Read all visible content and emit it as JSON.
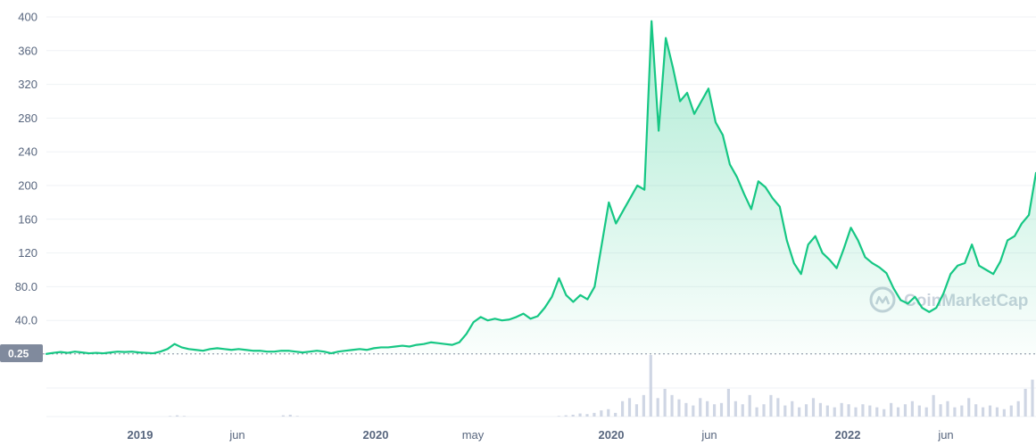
{
  "chart_data": {
    "type": "area",
    "title": "",
    "xlabel": "",
    "ylabel": "",
    "ylim": [
      0,
      400
    ],
    "y_ticks": [
      "40.0",
      "80.0",
      "120",
      "160",
      "200",
      "240",
      "280",
      "320",
      "360",
      "400"
    ],
    "y_tick_values": [
      40,
      80,
      120,
      160,
      200,
      240,
      280,
      320,
      360,
      400
    ],
    "x_ticks": [
      {
        "label": "2019",
        "major": true
      },
      {
        "label": "jun",
        "major": false
      },
      {
        "label": "2020",
        "major": true
      },
      {
        "label": "may",
        "major": false
      },
      {
        "label": "2020",
        "major": true
      },
      {
        "label": "jun",
        "major": false
      },
      {
        "label": "2022",
        "major": true
      },
      {
        "label": "jun",
        "major": false
      }
    ],
    "baseline_label": "0.25",
    "baseline_value": 0.25,
    "grid": true,
    "series": [
      {
        "values": [
          0.25,
          1.5,
          2.5,
          1.5,
          3.0,
          2.0,
          1.0,
          1.5,
          1.0,
          2.0,
          3.0,
          2.5,
          3.0,
          2.0,
          1.5,
          1.0,
          3.0,
          6.0,
          12.0,
          8.0,
          6.0,
          5.0,
          4.0,
          6.0,
          7.0,
          6.0,
          5.0,
          6.0,
          5.0,
          4.0,
          4.0,
          3.0,
          3.0,
          4.0,
          4.0,
          3.0,
          2.0,
          3.0,
          4.0,
          3.0,
          1.0,
          3.0,
          4.0,
          5.0,
          6.0,
          5.0,
          7.0,
          8.0,
          8.0,
          9.0,
          10.0,
          9.0,
          11.0,
          12.0,
          14.0,
          13.0,
          12.0,
          11.0,
          14.0,
          24.0,
          38.0,
          44.0,
          40.0,
          42.0,
          40.0,
          41.0,
          44.0,
          48.0,
          42.0,
          45.0,
          55.0,
          68.0,
          90.0,
          70.0,
          62.0,
          70.0,
          65.0,
          80.0,
          130.0,
          180.0,
          155.0,
          170.0,
          185.0,
          200.0,
          195.0,
          395.0,
          265.0,
          375.0,
          340.0,
          300.0,
          310.0,
          285.0,
          300.0,
          315.0,
          275.0,
          260.0,
          225.0,
          210.0,
          190.0,
          172.0,
          205.0,
          198.0,
          185.0,
          175.0,
          135.0,
          108.0,
          95.0,
          130.0,
          140.0,
          120.0,
          112.0,
          102.0,
          125.0,
          150.0,
          135.0,
          115.0,
          108.0,
          103.0,
          96.0,
          78.0,
          64.0,
          60.0,
          68.0,
          55.0,
          50.0,
          55.0,
          72.0,
          95.0,
          105.0,
          108.0,
          130.0,
          105.0,
          100.0,
          95.0,
          110.0,
          135.0,
          140.0,
          155.0,
          165.0,
          215.0
        ]
      }
    ],
    "volume": {
      "values": [
        0,
        0,
        0,
        0,
        0,
        0,
        0,
        0,
        0,
        0,
        0,
        0,
        0,
        0,
        0,
        0,
        0,
        0.01,
        0.02,
        0.01,
        0,
        0,
        0,
        0,
        0,
        0,
        0,
        0,
        0,
        0,
        0,
        0,
        0,
        0.02,
        0.03,
        0.01,
        0,
        0,
        0,
        0,
        0,
        0,
        0,
        0,
        0,
        0,
        0,
        0,
        0,
        0,
        0,
        0,
        0,
        0,
        0,
        0,
        0,
        0,
        0,
        0,
        0,
        0,
        0,
        0,
        0,
        0,
        0,
        0,
        0,
        0,
        0,
        0,
        0.01,
        0.02,
        0.03,
        0.05,
        0.04,
        0.06,
        0.1,
        0.12,
        0.06,
        0.25,
        0.3,
        0.2,
        0.35,
        1.0,
        0.3,
        0.45,
        0.35,
        0.28,
        0.22,
        0.18,
        0.3,
        0.25,
        0.2,
        0.22,
        0.45,
        0.25,
        0.2,
        0.35,
        0.15,
        0.2,
        0.35,
        0.3,
        0.18,
        0.25,
        0.15,
        0.2,
        0.3,
        0.22,
        0.18,
        0.15,
        0.22,
        0.2,
        0.15,
        0.2,
        0.18,
        0.15,
        0.12,
        0.22,
        0.15,
        0.2,
        0.25,
        0.18,
        0.15,
        0.35,
        0.2,
        0.25,
        0.15,
        0.18,
        0.3,
        0.2,
        0.15,
        0.18,
        0.15,
        0.12,
        0.18,
        0.25,
        0.45,
        0.6
      ]
    },
    "colors": {
      "line": "#16c784",
      "area_top": "#16c784",
      "grid": "#eff2f5",
      "tick_text": "#58667e",
      "badge_bg": "#808a9d",
      "volume": "#cfd6e4",
      "watermark": "#c9d2dc"
    }
  },
  "watermark": {
    "text": "CoinMarketCap",
    "icon": "coinmarketcap-logo-icon"
  }
}
